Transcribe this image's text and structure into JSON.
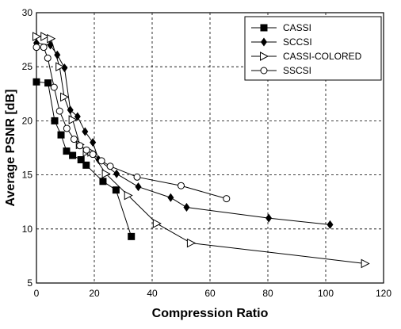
{
  "chart_data": {
    "type": "line",
    "title": "",
    "xlabel": "Compression Ratio",
    "ylabel": "Average PSNR [dB]",
    "xlim": [
      0,
      120
    ],
    "ylim": [
      5,
      30
    ],
    "xticks": [
      0,
      20,
      40,
      60,
      80,
      100,
      120
    ],
    "yticks": [
      5,
      10,
      15,
      20,
      25,
      30
    ],
    "grid": true,
    "grid_style": "dashed",
    "legend_position": "top-right",
    "series": [
      {
        "name": "CASSI",
        "marker": "square",
        "color": "#000000",
        "x": [
          0,
          4,
          6.3,
          8.5,
          10.4,
          12.5,
          15.4,
          17.2,
          23,
          27.5,
          32.8
        ],
        "y": [
          23.6,
          23.5,
          20,
          18.7,
          17.2,
          16.8,
          16.4,
          15.9,
          14.4,
          13.6,
          9.3
        ]
      },
      {
        "name": "SCCSI",
        "marker": "diamond",
        "color": "#000000",
        "x": [
          0,
          4.8,
          7.2,
          9.7,
          11.7,
          14.2,
          16.8,
          19.5,
          21.5,
          27.7,
          35.2,
          46.4,
          51.9,
          80.3,
          101.5
        ],
        "y": [
          27.2,
          27,
          26.1,
          24.9,
          21,
          20.4,
          19,
          18,
          16.4,
          15.1,
          13.9,
          12.9,
          12,
          11,
          10.4
        ]
      },
      {
        "name": "CASSI-COLORED",
        "marker": "triangle-right",
        "color": "#000000",
        "x": [
          0,
          2.8,
          5,
          8,
          9.6,
          12.5,
          15,
          17.4,
          19,
          24,
          31.7,
          41.6,
          53.4,
          113.6
        ],
        "y": [
          27.8,
          27.8,
          27.6,
          25,
          22.2,
          20.1,
          17.8,
          17.1,
          17.1,
          15.1,
          13.1,
          10.5,
          8.7,
          6.8
        ]
      },
      {
        "name": "SSCSI",
        "marker": "circle",
        "color": "#000000",
        "x": [
          0,
          2.5,
          3.9,
          6.1,
          8,
          10.5,
          13,
          15,
          17.3,
          19.5,
          22.5,
          25.5,
          34.8,
          50,
          65.7
        ],
        "y": [
          26.8,
          26.8,
          25.8,
          23.1,
          20.9,
          19.3,
          18.3,
          17.7,
          17.3,
          16.9,
          16.3,
          15.8,
          14.8,
          14,
          12.8
        ]
      }
    ]
  }
}
